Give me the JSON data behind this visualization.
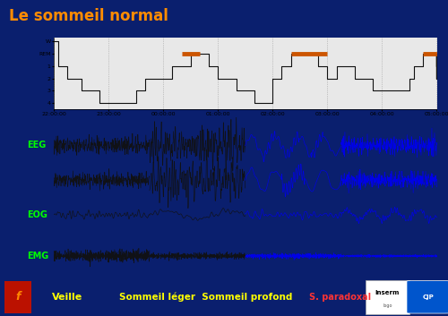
{
  "title": "Le sommeil normal",
  "title_color": "#FF8C00",
  "bg_color": "#0a1f6e",
  "signal_bg_color": "#1a3a9a",
  "bottom_bar_color": "#1a4fcc",
  "bottom_text_left": "Veille",
  "bottom_text_mid": "Sommeil léger  Sommeil profond",
  "bottom_text_right": "S. paradoxal",
  "bottom_text_color": "#FFFF00",
  "bottom_text_red": "#FF3333",
  "eeg_label": "EEG",
  "eog_label": "EOG",
  "emg_label": "EMG",
  "label_color": "#00FF00",
  "hypno_yticks": [
    "W",
    "REM",
    "1",
    "2",
    "3",
    "4"
  ],
  "hypno_xticks": [
    "22:00:00",
    "23:00:00",
    "00:00:00",
    "01:00:00",
    "02:00:00",
    "03:00:00",
    "04:00:00",
    "05:00:00"
  ],
  "sleep_chart_bg": "#e8e8e8",
  "hypno_line_color": "#111111",
  "rem_color": "#cc5500",
  "dashed_color": "#888888",
  "eeg_black": "#111111",
  "eeg_blue": "#0000ee",
  "inserm_box_color": "#ffffff"
}
